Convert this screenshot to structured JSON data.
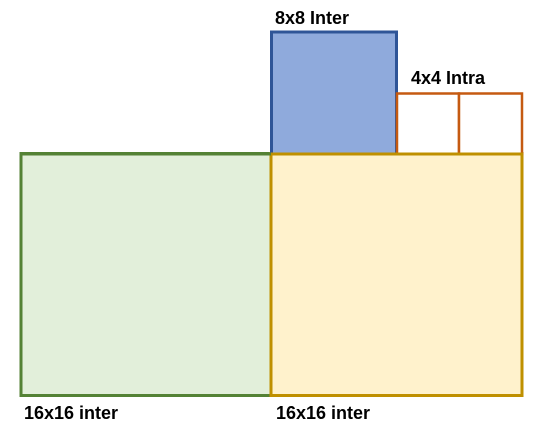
{
  "blocks": {
    "inter_8x8": {
      "label": "8x8 Inter",
      "fill": "#8faadc",
      "stroke": "#2f5597"
    },
    "intra_4x4": {
      "label": "4x4 Intra",
      "fill": "#ffffff",
      "stroke": "#c55a11"
    },
    "inter_16x16_left": {
      "label": "16x16 inter",
      "fill": "#e2efda",
      "stroke": "#548235"
    },
    "inter_16x16_right": {
      "label": "16x16 inter",
      "fill": "#fff2cc",
      "stroke": "#bf9000"
    }
  }
}
